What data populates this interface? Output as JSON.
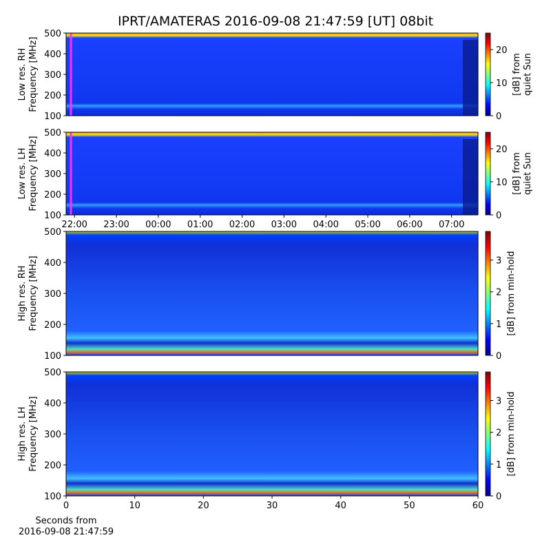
{
  "title": "IPRT/AMATERAS 2016-09-08 21:47:59 [UT]   08bit",
  "chart_data": [
    {
      "type": "heatmap",
      "ylabel": [
        "Low res. RH",
        "Frequency [MHz]"
      ],
      "xlim": [
        21.8,
        31.63
      ],
      "ylim": [
        100,
        500
      ],
      "yticks": [
        100,
        200,
        300,
        400,
        500
      ],
      "colorbar": {
        "label": [
          "[dB] from",
          "quiet Sun"
        ],
        "lim": [
          0,
          25
        ],
        "ticks": [
          0,
          10,
          20
        ]
      }
    },
    {
      "type": "heatmap",
      "ylabel": [
        "Low res. LH",
        "Frequency [MHz]"
      ],
      "xlim": [
        21.8,
        31.63
      ],
      "ylim": [
        100,
        500
      ],
      "yticks": [
        100,
        200,
        300,
        400,
        500
      ],
      "xticks": [
        {
          "value": 22,
          "label": "22:00"
        },
        {
          "value": 23,
          "label": "23:00"
        },
        {
          "value": 24,
          "label": "00:00"
        },
        {
          "value": 25,
          "label": "01:00"
        },
        {
          "value": 26,
          "label": "02:00"
        },
        {
          "value": 27,
          "label": "03:00"
        },
        {
          "value": 28,
          "label": "04:00"
        },
        {
          "value": 29,
          "label": "05:00"
        },
        {
          "value": 30,
          "label": "06:00"
        },
        {
          "value": 31,
          "label": "07:00"
        }
      ],
      "colorbar": {
        "label": [
          "[dB] from",
          "quiet Sun"
        ],
        "lim": [
          0,
          25
        ],
        "ticks": [
          0,
          10,
          20
        ]
      }
    },
    {
      "type": "heatmap",
      "ylabel": [
        "High res. RH",
        "Frequency [MHz]"
      ],
      "xlim": [
        0,
        60
      ],
      "ylim": [
        100,
        500
      ],
      "yticks": [
        100,
        200,
        300,
        400,
        500
      ],
      "colorbar": {
        "label": [
          "[dB] from min-hold"
        ],
        "lim": [
          0,
          3.9
        ],
        "ticks": [
          0,
          1,
          2,
          3
        ]
      }
    },
    {
      "type": "heatmap",
      "ylabel": [
        "High res. LH",
        "Frequency [MHz]"
      ],
      "xlabel": [
        "Seconds from",
        "2016-09-08 21:47:59"
      ],
      "xlim": [
        0,
        60
      ],
      "ylim": [
        100,
        500
      ],
      "yticks": [
        100,
        200,
        300,
        400,
        500
      ],
      "xticks": [
        0,
        10,
        20,
        30,
        40,
        50,
        60
      ],
      "colorbar": {
        "label": [
          "[dB] from min-hold"
        ],
        "lim": [
          0,
          3.9
        ],
        "ticks": [
          0,
          1,
          2,
          3
        ]
      }
    }
  ]
}
